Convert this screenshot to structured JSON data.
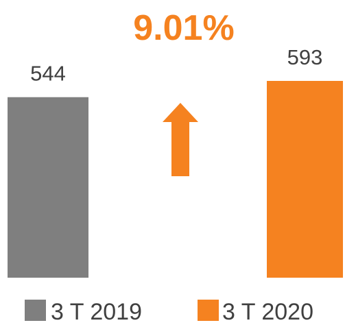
{
  "chart_data": {
    "type": "bar",
    "annotation": "9.01%",
    "annotation_color": "#f58220",
    "series": [
      {
        "name": "3 T 2019",
        "color": "#7f7f7f",
        "values": [
          544
        ]
      },
      {
        "name": "3 T 2020",
        "color": "#f58220",
        "values": [
          593
        ]
      }
    ]
  }
}
